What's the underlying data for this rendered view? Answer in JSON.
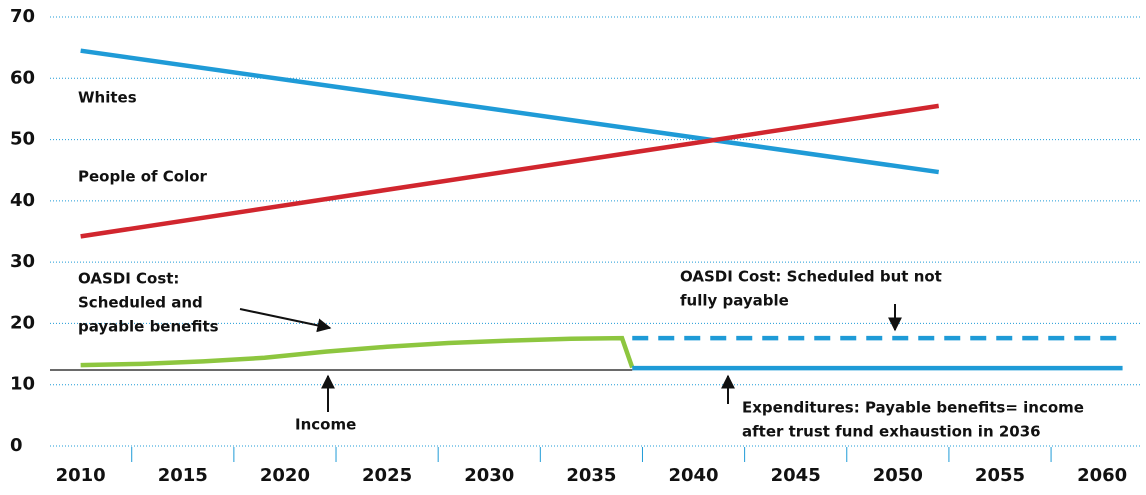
{
  "chart_data": {
    "type": "line",
    "xlim": [
      2008.5,
      2062
    ],
    "xticks": [
      2010,
      2015,
      2020,
      2025,
      2030,
      2035,
      2040,
      2045,
      2050,
      2055,
      2060
    ],
    "ylim": [
      0,
      70
    ],
    "yticks": [
      0,
      10,
      20,
      30,
      40,
      50,
      60,
      70
    ],
    "grid": true,
    "series": [
      {
        "name": "Whites",
        "color": "#1f9bd7",
        "x": [
          2010,
          2052
        ],
        "values": [
          64.5,
          44.7
        ]
      },
      {
        "name": "People of Color",
        "color": "#d1262e",
        "x": [
          2010,
          2052
        ],
        "values": [
          34.2,
          55.5
        ]
      },
      {
        "name": "OASDI Cost: Scheduled and payable benefits",
        "color": "#8dc63f",
        "x": [
          2010,
          2013,
          2016,
          2019,
          2022,
          2025,
          2028,
          2031,
          2034,
          2036.5,
          2037
        ],
        "values": [
          13.2,
          13.4,
          13.8,
          14.4,
          15.4,
          16.2,
          16.8,
          17.2,
          17.5,
          17.6,
          12.8
        ]
      },
      {
        "name": "Expenditures",
        "color": "#1f9bd7",
        "x": [
          2037,
          2061
        ],
        "values": [
          12.7,
          12.7
        ]
      },
      {
        "name": "OASDI Cost: Scheduled but not fully payable",
        "color": "#1f9bd7",
        "dashed": true,
        "x": [
          2037,
          2061
        ],
        "values": [
          17.6,
          17.6
        ]
      },
      {
        "name": "Income",
        "color": "#111111",
        "thin": true,
        "x": [
          2008.5,
          2037
        ],
        "values": [
          12.4,
          12.4
        ]
      }
    ],
    "annotations": [
      [
        "Whites"
      ],
      [
        "People of Color"
      ],
      [
        "OASDI Cost:",
        "Scheduled and",
        "payable benefits"
      ],
      [
        "Income"
      ],
      [
        "OASDI Cost: Scheduled but not",
        "fully payable"
      ],
      [
        "Expenditures: Payable benefits= income",
        "after trust fund exhaustion in 2036"
      ]
    ]
  }
}
